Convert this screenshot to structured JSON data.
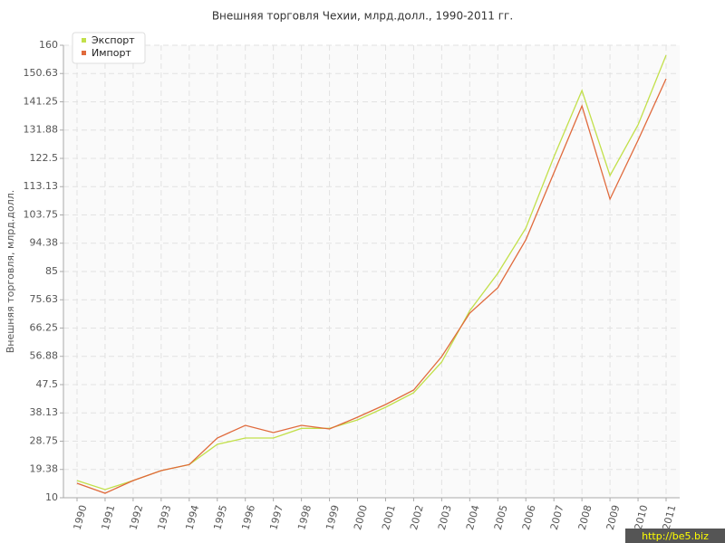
{
  "chart_data": {
    "type": "line",
    "title": "Внешняя торговля Чехии, млрд.долл., 1990-2011 гг.",
    "y_label": "Внешняя торговля, млрд.долл.",
    "watermark": "http://be5.biz",
    "categories": [
      "1990",
      "1991",
      "1992",
      "1993",
      "1994",
      "1995",
      "1996",
      "1997",
      "1998",
      "1999",
      "2000",
      "2001",
      "2002",
      "2003",
      "2004",
      "2005",
      "2006",
      "2007",
      "2008",
      "2009",
      "2010",
      "2011"
    ],
    "series": [
      {
        "name": "Экспорт",
        "color": "#c2e04a",
        "values": [
          15.7,
          12.7,
          15.7,
          19,
          21,
          27.7,
          29.8,
          29.8,
          33,
          33,
          35.8,
          40,
          44.8,
          55,
          72,
          84.4,
          99.4,
          123,
          145,
          116.8,
          133.6,
          156.7
        ]
      },
      {
        "name": "Импорт",
        "color": "#e06a3c",
        "values": [
          14.8,
          11.5,
          15.7,
          19,
          21,
          29.8,
          34,
          31.6,
          34,
          32.8,
          36.7,
          40.9,
          45.7,
          56.8,
          71.2,
          79.6,
          95.5,
          117.7,
          139.9,
          109,
          128.5,
          148.9
        ]
      }
    ],
    "ylim": [
      10,
      160
    ],
    "yticks": [
      10,
      19.38,
      28.75,
      38.13,
      47.5,
      56.88,
      66.25,
      75.63,
      85,
      94.38,
      103.75,
      113.13,
      122.5,
      131.88,
      141.25,
      150.63,
      160
    ],
    "grid": true,
    "legend": "top-left"
  }
}
